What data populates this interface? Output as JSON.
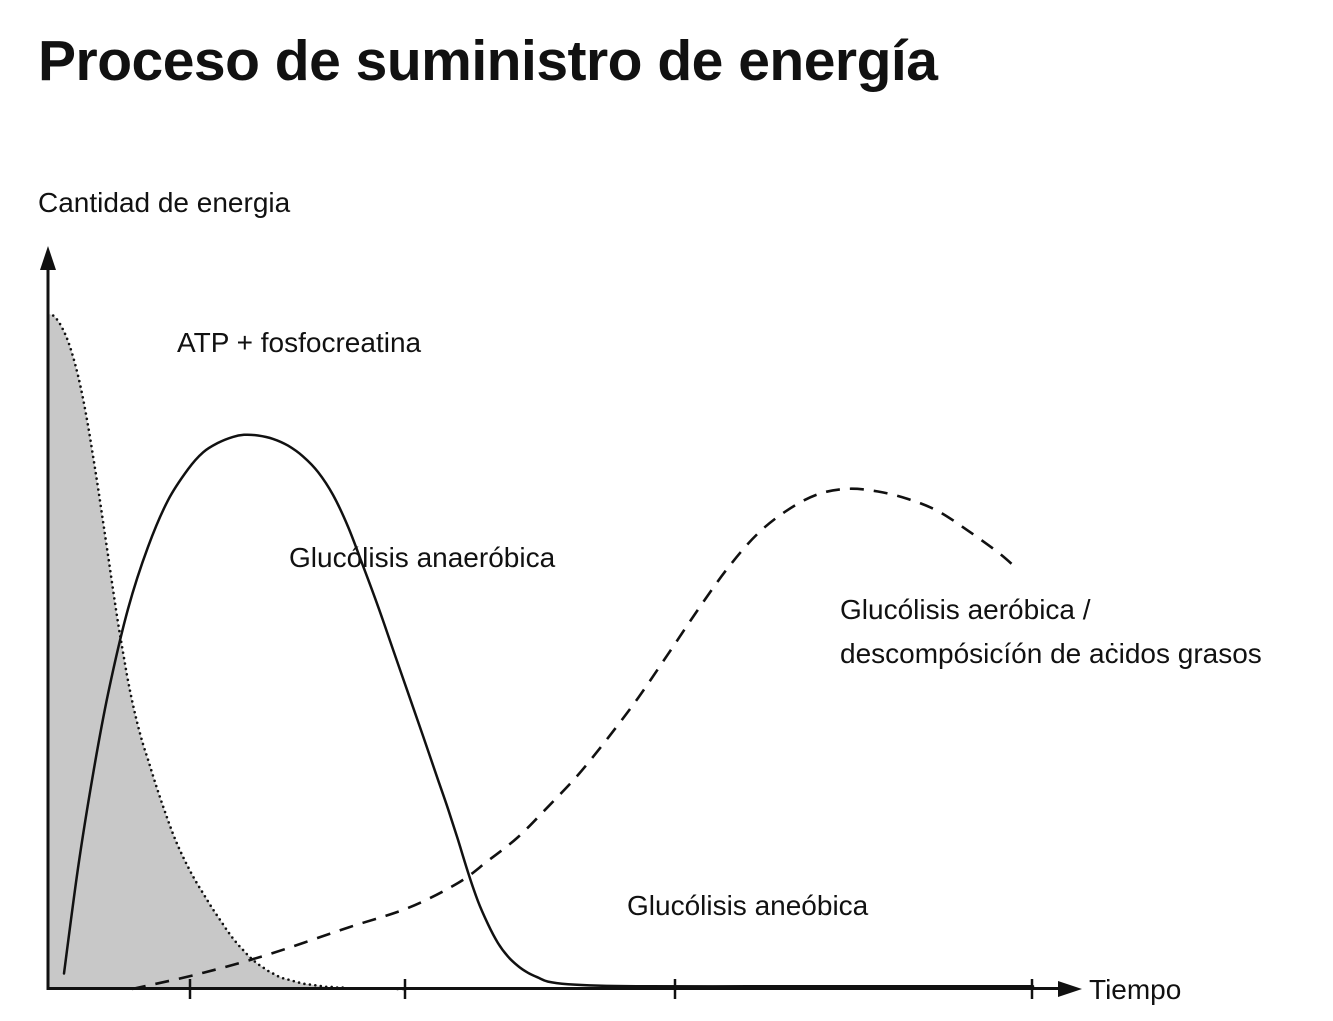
{
  "chart_data": {
    "type": "line",
    "title": "Proceso de suministro de energía",
    "xlabel": "Tiempo",
    "ylabel": "Cantidad de energia",
    "x_ticks": [
      "",
      "",
      "",
      ""
    ],
    "grid": false,
    "legend": "none",
    "series": [
      {
        "name": "ATP + fosfocreatina",
        "style": "dotted-filled",
        "fill": "#c8c8c8",
        "x": [
          0,
          5,
          10,
          15,
          20,
          25,
          30,
          35,
          40,
          45,
          50,
          55,
          60,
          65,
          70,
          75,
          80,
          85,
          90,
          95,
          100,
          105,
          110,
          115,
          120,
          125,
          130,
          135,
          140,
          145,
          150,
          155,
          160,
          165,
          170,
          175,
          180,
          185,
          190,
          195,
          200,
          205,
          210,
          215,
          220,
          225,
          230,
          235,
          240,
          245,
          250,
          255,
          260,
          265,
          270,
          275,
          280,
          285,
          290,
          295,
          300,
          305,
          310,
          315,
          320,
          325,
          330,
          335,
          340,
          345,
          350,
          356
        ],
        "y": [
          100.0,
          99.8,
          99.0,
          97.7,
          96.0,
          93.7,
          90.9,
          87.5,
          83.5,
          79.0,
          74.3,
          69.3,
          64.3,
          59.2,
          54.3,
          49.9,
          45.7,
          42.1,
          39.0,
          36.3,
          34.0,
          31.6,
          29.3,
          27.1,
          25.0,
          23.0,
          21.2,
          19.6,
          18.1,
          16.7,
          15.4,
          14.2,
          13.0,
          11.8,
          10.7,
          9.6,
          8.5,
          7.5,
          6.6,
          5.8,
          5.0,
          4.3,
          3.7,
          3.2,
          2.7,
          2.3,
          1.9,
          1.6,
          1.4,
          1.2,
          1.0,
          0.8,
          0.7,
          0.6,
          0.5,
          0.4,
          0.3,
          0.3,
          0.2,
          0.2,
          0.1,
          0.1,
          0.1,
          0.1,
          0.1,
          0.1,
          0.1,
          0.1,
          0.1,
          0.1,
          0.0,
          0.0
        ]
      },
      {
        "name": "Glucólisis anaeróbica",
        "style": "solid",
        "x": [
          16,
          30,
          45,
          60,
          80,
          100,
          120,
          140,
          155,
          170,
          185,
          196,
          210,
          225,
          240,
          255,
          270,
          285,
          300,
          315,
          330,
          345,
          360,
          375,
          390,
          400,
          410,
          420,
          430,
          440,
          450,
          460,
          470,
          480,
          490,
          500,
          520,
          550,
          600,
          700,
          800,
          900,
          985
        ],
        "y": [
          2.3,
          17.9,
          31.8,
          43.7,
          56.3,
          65.5,
          72.4,
          77.0,
          79.5,
          80.9,
          81.8,
          82.1,
          82.0,
          81.5,
          80.5,
          78.9,
          76.6,
          73.2,
          68.5,
          62.7,
          56.7,
          50.3,
          43.9,
          37.5,
          31.0,
          26.7,
          22.1,
          17.3,
          13.0,
          9.6,
          6.8,
          4.8,
          3.4,
          2.4,
          1.7,
          1.1,
          0.7,
          0.5,
          0.4,
          0.4,
          0.4,
          0.4,
          0.4
        ]
      },
      {
        "name": "Glucólisis aeróbica / descomposición de ácidos grasos",
        "style": "dashed",
        "x": [
          84,
          150,
          220,
          300,
          360,
          410,
          440,
          470,
          500,
          530,
          560,
          590,
          620,
          650,
          680,
          710,
          740,
          770,
          800,
          830,
          860,
          890,
          920,
          950,
          968
        ],
        "y": [
          0.0,
          2.2,
          5.1,
          9.1,
          12.0,
          15.7,
          19.0,
          22.5,
          27.0,
          31.7,
          37.2,
          43.1,
          49.6,
          56.2,
          62.4,
          67.5,
          71.0,
          73.3,
          74.1,
          73.7,
          72.6,
          70.8,
          67.9,
          64.7,
          62.4
        ]
      }
    ],
    "annotations": [
      {
        "text": "ATP + fosfocreatina",
        "series_index": 0
      },
      {
        "text": "Glucólisis anaeróbica",
        "series_index": 1
      },
      {
        "text": "Glucólisis aeróbica /",
        "series_index": 2
      },
      {
        "text": "descompósicíón de aċidos grasos",
        "series_index": 2
      },
      {
        "text": "Glucólisis aneóbica",
        "series_index": 1
      }
    ]
  }
}
